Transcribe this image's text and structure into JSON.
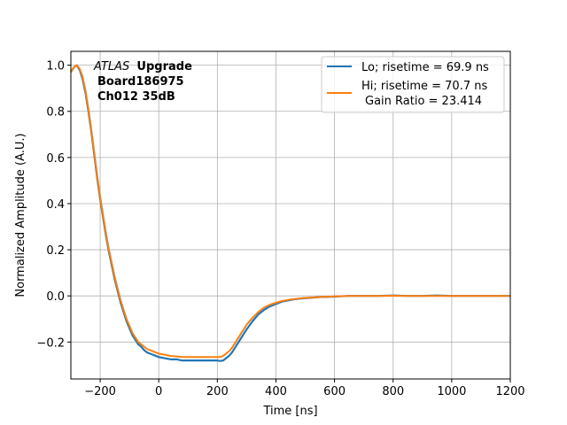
{
  "chart_data": {
    "type": "line",
    "xlabel": "Time [ns]",
    "ylabel": "Normalized Amplitude (A.U.)",
    "xlim": [
      -300,
      1200
    ],
    "ylim": [
      -0.36,
      1.06
    ],
    "x_ticks": [
      -200,
      0,
      200,
      400,
      600,
      800,
      1000,
      1200
    ],
    "x_tick_labels": [
      "−200",
      "0",
      "200",
      "400",
      "600",
      "800",
      "1000",
      "1200"
    ],
    "y_ticks": [
      -0.2,
      0.0,
      0.2,
      0.4,
      0.6,
      0.8,
      1.0
    ],
    "y_tick_labels": [
      "−0.2",
      "0.0",
      "0.2",
      "0.4",
      "0.6",
      "0.8",
      "1.0"
    ],
    "grid": true,
    "legend_position": "top-right",
    "annotation": {
      "atlas": "ATLAS",
      "upgrade": "Upgrade",
      "board": "Board186975",
      "channel": "Ch012 35dB"
    },
    "series": [
      {
        "name": "Lo; risetime = 69.9 ns",
        "color": "#1f77b4",
        "x": [
          -300,
          -290,
          -280,
          -270,
          -260,
          -250,
          -240,
          -230,
          -220,
          -210,
          -200,
          -190,
          -180,
          -170,
          -160,
          -150,
          -140,
          -130,
          -120,
          -110,
          -100,
          -90,
          -80,
          -70,
          -60,
          -50,
          -40,
          -30,
          -20,
          -10,
          0,
          20,
          40,
          60,
          80,
          100,
          120,
          140,
          160,
          180,
          200,
          210,
          220,
          230,
          240,
          250,
          260,
          270,
          280,
          290,
          300,
          320,
          340,
          360,
          380,
          400,
          420,
          440,
          460,
          480,
          500,
          550,
          600,
          650,
          700,
          750,
          800,
          850,
          900,
          950,
          1000,
          1050,
          1100,
          1150,
          1200
        ],
        "y": [
          0.97,
          0.99,
          1.0,
          0.98,
          0.94,
          0.88,
          0.8,
          0.71,
          0.61,
          0.51,
          0.42,
          0.34,
          0.26,
          0.19,
          0.13,
          0.07,
          0.02,
          -0.03,
          -0.07,
          -0.11,
          -0.14,
          -0.17,
          -0.19,
          -0.21,
          -0.22,
          -0.235,
          -0.245,
          -0.25,
          -0.255,
          -0.26,
          -0.265,
          -0.27,
          -0.275,
          -0.275,
          -0.28,
          -0.28,
          -0.28,
          -0.28,
          -0.28,
          -0.28,
          -0.28,
          -0.282,
          -0.28,
          -0.27,
          -0.26,
          -0.245,
          -0.225,
          -0.205,
          -0.185,
          -0.165,
          -0.145,
          -0.11,
          -0.08,
          -0.06,
          -0.045,
          -0.035,
          -0.025,
          -0.02,
          -0.015,
          -0.012,
          -0.01,
          -0.005,
          -0.003,
          0.0,
          0.0,
          0.0,
          0.002,
          0.0,
          0.0,
          0.002,
          0.0,
          0.0,
          0.0,
          0.0,
          0.0
        ]
      },
      {
        "name": "Hi; risetime = 70.7 ns",
        "extra_label": "Gain Ratio = 23.414",
        "color": "#ff7f0e",
        "x": [
          -300,
          -290,
          -280,
          -270,
          -260,
          -250,
          -240,
          -230,
          -220,
          -210,
          -200,
          -190,
          -180,
          -170,
          -160,
          -150,
          -140,
          -130,
          -120,
          -110,
          -100,
          -90,
          -80,
          -70,
          -60,
          -50,
          -40,
          -30,
          -20,
          -10,
          0,
          20,
          40,
          60,
          80,
          100,
          120,
          140,
          160,
          180,
          200,
          210,
          220,
          230,
          240,
          250,
          260,
          270,
          280,
          290,
          300,
          320,
          340,
          360,
          380,
          400,
          420,
          440,
          460,
          480,
          500,
          550,
          600,
          650,
          700,
          750,
          800,
          850,
          900,
          950,
          1000,
          1050,
          1100,
          1150,
          1200
        ],
        "y": [
          0.97,
          0.99,
          1.0,
          0.985,
          0.95,
          0.89,
          0.81,
          0.72,
          0.62,
          0.52,
          0.43,
          0.35,
          0.27,
          0.2,
          0.14,
          0.08,
          0.03,
          -0.02,
          -0.06,
          -0.1,
          -0.13,
          -0.16,
          -0.18,
          -0.2,
          -0.21,
          -0.22,
          -0.23,
          -0.235,
          -0.24,
          -0.245,
          -0.25,
          -0.255,
          -0.26,
          -0.262,
          -0.265,
          -0.265,
          -0.265,
          -0.265,
          -0.265,
          -0.265,
          -0.265,
          -0.265,
          -0.26,
          -0.25,
          -0.24,
          -0.225,
          -0.205,
          -0.185,
          -0.165,
          -0.145,
          -0.125,
          -0.095,
          -0.07,
          -0.05,
          -0.038,
          -0.03,
          -0.022,
          -0.018,
          -0.014,
          -0.011,
          -0.009,
          -0.005,
          -0.002,
          0.0,
          0.0,
          0.0,
          0.001,
          0.0,
          0.0,
          0.0,
          0.0,
          0.0,
          0.0,
          0.0,
          0.0
        ]
      }
    ]
  }
}
